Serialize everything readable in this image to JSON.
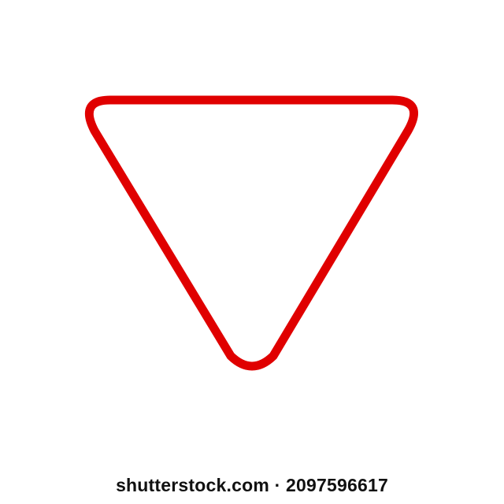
{
  "image": {
    "subject": "yield-sign-outline",
    "background_color": "#ffffff"
  },
  "sign": {
    "icon": "yield-triangle-outline-icon",
    "stroke_color": "#e00000",
    "fill_color": "#ffffff"
  },
  "watermark": {
    "text": "shutterstock.com · 2097596617",
    "color": "#111111"
  }
}
